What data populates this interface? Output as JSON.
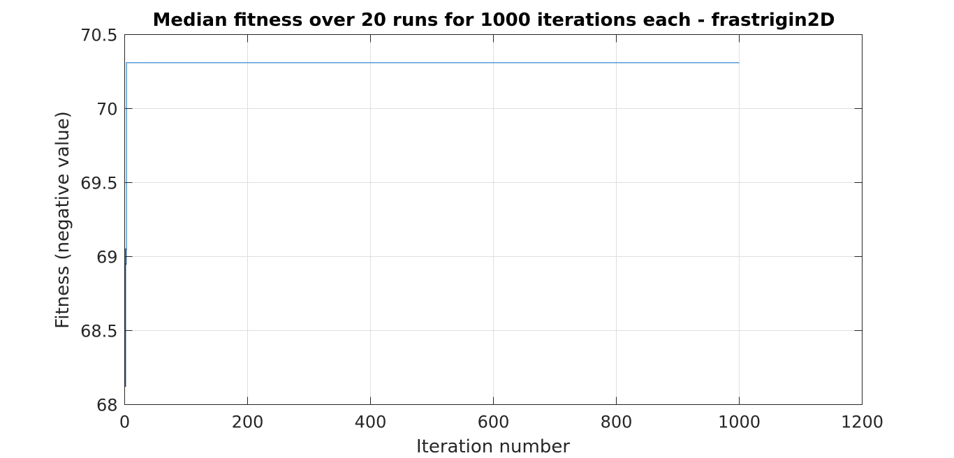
{
  "chart_data": {
    "type": "line",
    "title": "Median fitness over 20 runs for 1000 iterations each - frastrigin2D",
    "xlabel": "Iteration number",
    "ylabel": "Fitness (negative value)",
    "xlim": [
      0,
      1200
    ],
    "ylim": [
      68,
      70.5
    ],
    "xticks": [
      0,
      200,
      400,
      600,
      800,
      1000,
      1200
    ],
    "xtick_labels": [
      "0",
      "200",
      "400",
      "600",
      "800",
      "1000",
      "1200"
    ],
    "yticks": [
      68,
      68.5,
      69,
      69.5,
      70,
      70.5
    ],
    "ytick_labels": [
      "68",
      "68.5",
      "69",
      "69.5",
      "70",
      "70.5"
    ],
    "grid": true,
    "colors": {
      "series": "#5b9bd5",
      "series_early": "#0e4d8a"
    },
    "series": [
      {
        "x": [
          1,
          1,
          2,
          2,
          3,
          3,
          1000
        ],
        "y": [
          68.12,
          68.95,
          68.95,
          69.05,
          69.05,
          70.31,
          70.31
        ]
      }
    ]
  }
}
